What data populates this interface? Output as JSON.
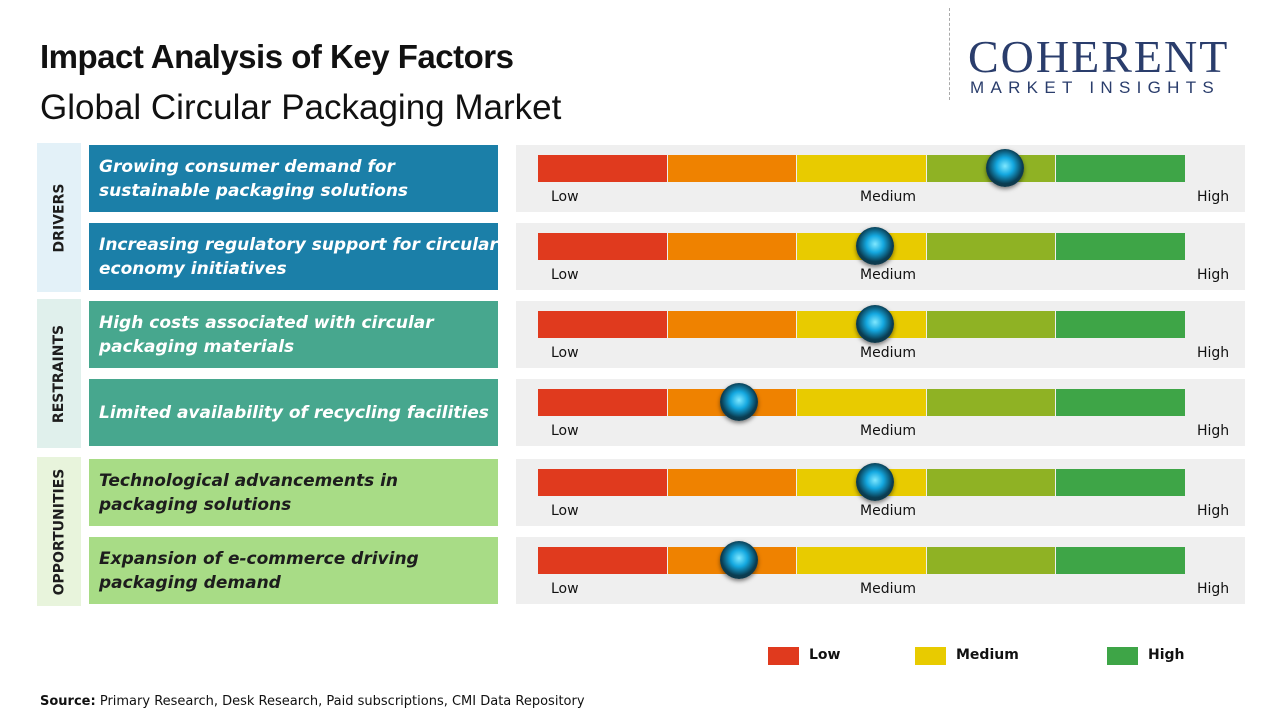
{
  "header": {
    "title": "Impact Analysis of Key Factors",
    "subtitle": "Global Circular Packaging Market"
  },
  "logo": {
    "name": "COHERENT",
    "tagline": "MARKET INSIGHTS"
  },
  "scale": {
    "xlim": [
      0,
      100
    ],
    "labels": [
      "Low",
      "Medium",
      "High"
    ],
    "segment_colors": [
      "#e03a1e",
      "#ef8200",
      "#e8cb00",
      "#8fb224",
      "#3ea547"
    ]
  },
  "groups": [
    {
      "label": "DRIVERS",
      "color": "#1b7fa8",
      "bg": "#e3f1f8",
      "text_color": "#ffffff",
      "factors": [
        {
          "text": "Growing consumer demand for sustainable packaging solutions",
          "impact": 72
        },
        {
          "text": "Increasing regulatory support for circular economy initiatives",
          "impact": 52
        }
      ]
    },
    {
      "label": "RESTRAINTS",
      "color": "#47a78e",
      "bg": "#e0f0ec",
      "text_color": "#ffffff",
      "factors": [
        {
          "text": "High costs associated with circular packaging materials",
          "impact": 52
        },
        {
          "text": "Limited availability of recycling facilities",
          "impact": 31
        }
      ]
    },
    {
      "label": "OPPORTUNITIES",
      "color": "#a8dc86",
      "bg": "#e8f4dc",
      "text_color": "#1d1d1d",
      "factors": [
        {
          "text": "Technological advancements in packaging solutions",
          "impact": 52
        },
        {
          "text": "Expansion of e-commerce driving packaging demand",
          "impact": 31
        }
      ]
    }
  ],
  "legend": [
    {
      "label": "Low",
      "color": "#e03a1e"
    },
    {
      "label": "Medium",
      "color": "#e8cb00"
    },
    {
      "label": "High",
      "color": "#3ea547"
    }
  ],
  "source": {
    "label": "Source:",
    "text": "Primary Research, Desk Research, Paid subscriptions, CMI Data Repository"
  }
}
